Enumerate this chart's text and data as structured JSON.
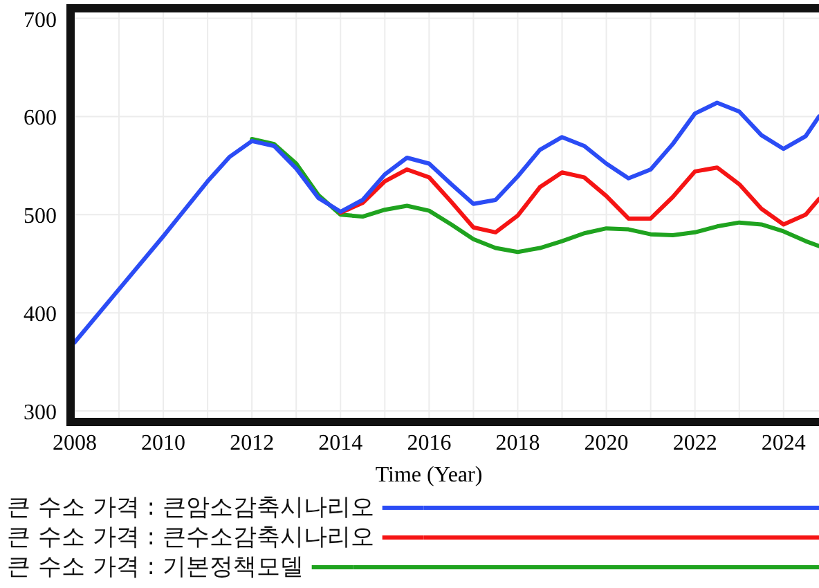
{
  "chart_data": {
    "type": "line",
    "xlabel": "Time (Year)",
    "x": [
      2008,
      2009,
      2010,
      2011,
      2011.5,
      2012,
      2012.5,
      2013,
      2013.5,
      2014,
      2014.5,
      2015,
      2015.5,
      2016,
      2016.5,
      2017,
      2017.5,
      2018,
      2018.5,
      2019,
      2019.5,
      2020,
      2020.5,
      2021,
      2021.5,
      2022,
      2022.5,
      2023,
      2023.5,
      2024,
      2024.5,
      2024.8
    ],
    "series": [
      {
        "name": "큰 수소 가격 : 큰암소감축시나리오",
        "color": "#2b4cf5",
        "values": [
          370,
          424,
          478,
          534,
          559,
          575,
          570,
          547,
          517,
          503,
          515,
          541,
          558,
          552,
          531,
          511,
          515,
          539,
          566,
          579,
          570,
          552,
          537,
          546,
          572,
          603,
          614,
          605,
          581,
          567,
          580,
          600
        ]
      },
      {
        "name": "큰 수소 가격 : 큰수소감축시나리오",
        "color": "#f51414",
        "values": [
          null,
          null,
          null,
          null,
          null,
          null,
          null,
          null,
          null,
          502,
          512,
          534,
          546,
          538,
          513,
          487,
          482,
          499,
          528,
          543,
          538,
          519,
          496,
          496,
          518,
          544,
          548,
          531,
          506,
          490,
          500,
          516
        ]
      },
      {
        "name": "큰 수소 가격 : 기본정책모델",
        "color": "#1fa31f",
        "values": [
          null,
          null,
          null,
          null,
          null,
          577,
          572,
          552,
          520,
          500,
          498,
          505,
          509,
          504,
          490,
          475,
          466,
          462,
          466,
          473,
          481,
          486,
          485,
          480,
          479,
          482,
          488,
          492,
          490,
          483,
          473,
          468
        ]
      }
    ],
    "xlim": [
      2008,
      2024.8
    ],
    "ylim": [
      293,
      706
    ],
    "xticks": [
      2008,
      {
        "value": 2009,
        "label": null
      },
      2010,
      {
        "value": 2011,
        "label": null
      },
      2012,
      {
        "value": 2013,
        "label": null
      },
      2014,
      {
        "value": 2015,
        "label": null
      },
      2016,
      {
        "value": 2017,
        "label": null
      },
      2018,
      {
        "value": 2019,
        "label": null
      },
      2020,
      {
        "value": 2021,
        "label": null
      },
      2022,
      {
        "value": 2023,
        "label": null
      },
      2024
    ],
    "yticks": [
      300,
      400,
      500,
      600,
      700
    ],
    "grid": true,
    "legend": "bottom",
    "line_style": "solid",
    "marker": "none"
  }
}
